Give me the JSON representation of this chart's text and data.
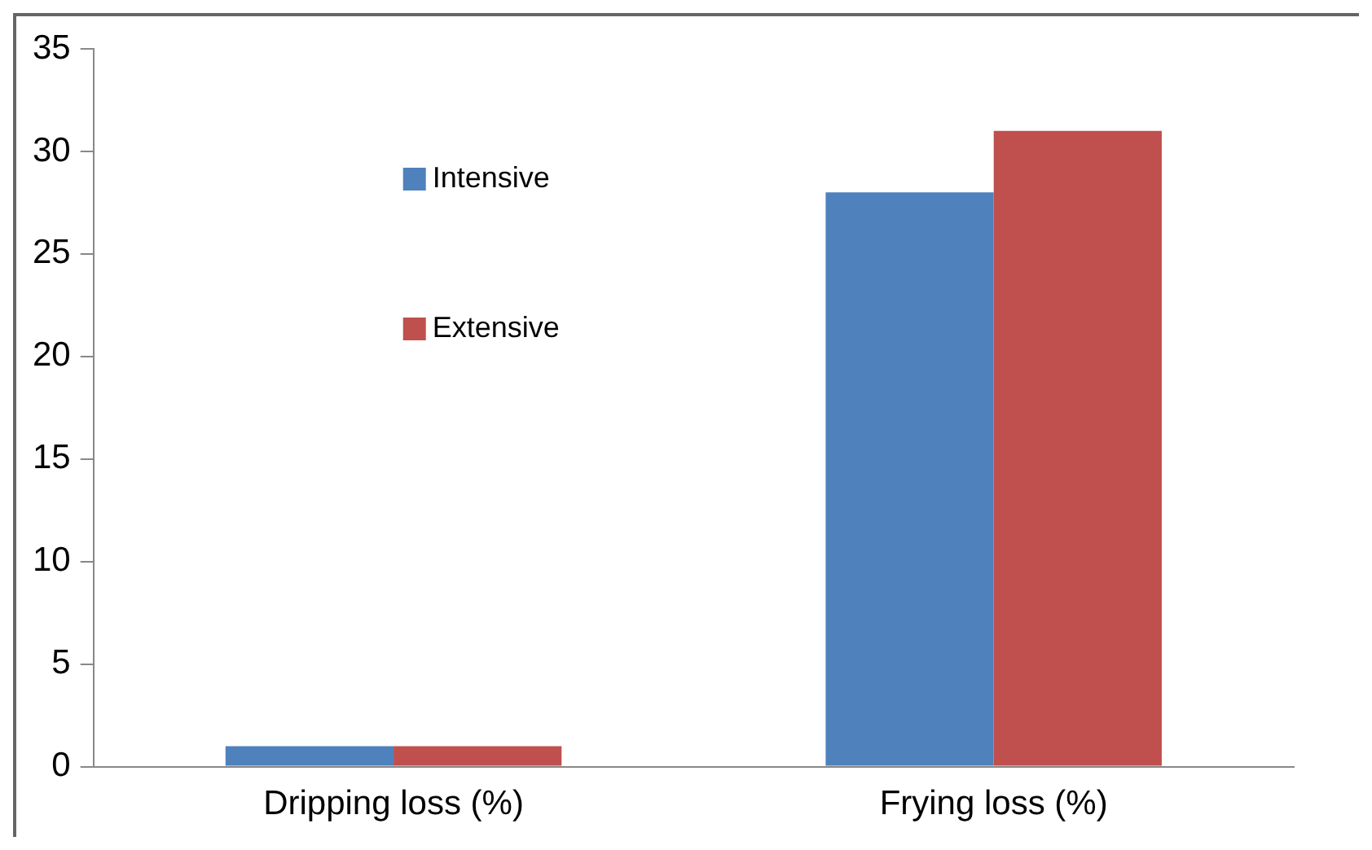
{
  "chart_data": {
    "type": "bar",
    "categories": [
      "Dripping loss (%)",
      "Frying loss (%)"
    ],
    "series": [
      {
        "name": "Intensive",
        "color": "#4f81bd",
        "values": [
          1,
          28
        ]
      },
      {
        "name": "Extensive",
        "color": "#c0504d",
        "values": [
          1,
          31
        ]
      }
    ],
    "ylim": [
      0,
      35
    ],
    "yticks": [
      0,
      5,
      10,
      15,
      20,
      25,
      30,
      35
    ],
    "grid": false,
    "legend": "top left"
  }
}
